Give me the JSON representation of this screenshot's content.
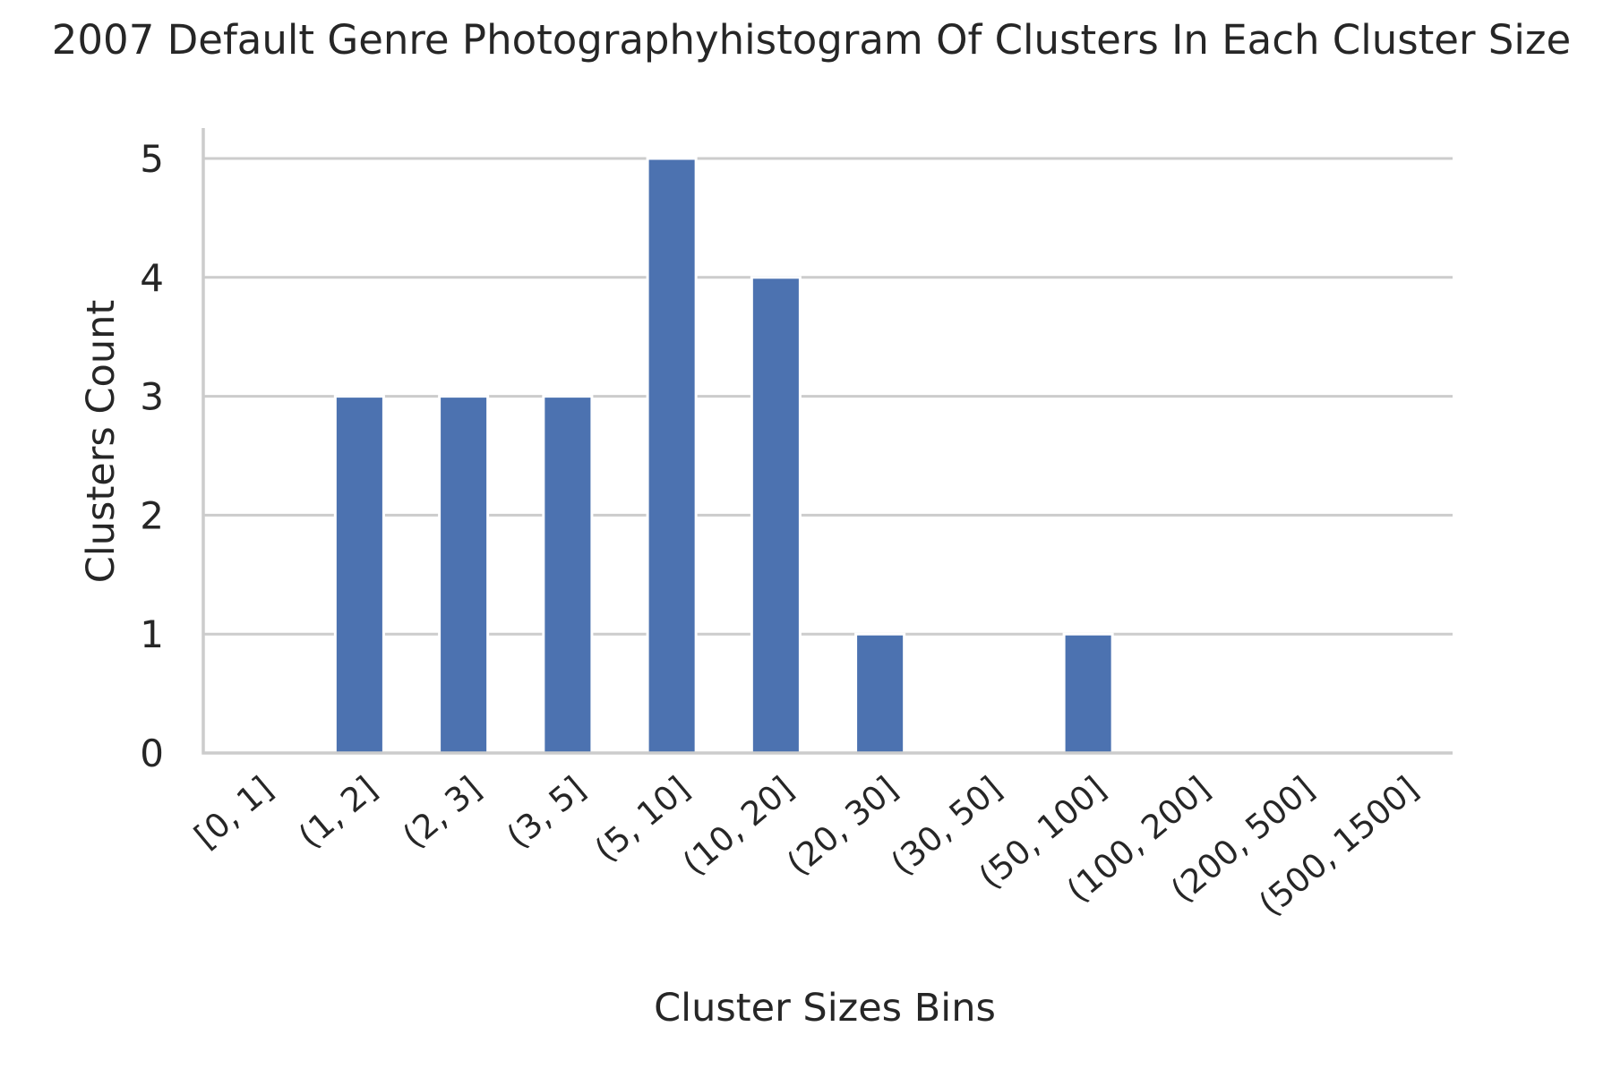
{
  "chart_data": {
    "type": "bar",
    "title": "2007 Default Genre Photographyhistogram Of Clusters In Each Cluster Size",
    "xlabel": "Cluster Sizes Bins",
    "ylabel": "Clusters Count",
    "categories": [
      "[0, 1]",
      "(1, 2]",
      "(2, 3]",
      "(3, 5]",
      "(5, 10]",
      "(10, 20]",
      "(20, 30]",
      "(30, 50]",
      "(50, 100]",
      "(100, 200]",
      "(200, 500]",
      "(500, 1500]"
    ],
    "values": [
      0,
      3,
      3,
      3,
      5,
      4,
      1,
      0,
      1,
      0,
      0,
      0
    ],
    "yticks": [
      "0",
      "1",
      "2",
      "3",
      "4",
      "5"
    ],
    "ylim": [
      0,
      5.25
    ],
    "grid": "horizontal",
    "colors": {
      "bar": "#4c72b0",
      "grid": "#cccccc",
      "spine": "#cccccc",
      "text": "#262626",
      "background": "#ffffff"
    }
  }
}
